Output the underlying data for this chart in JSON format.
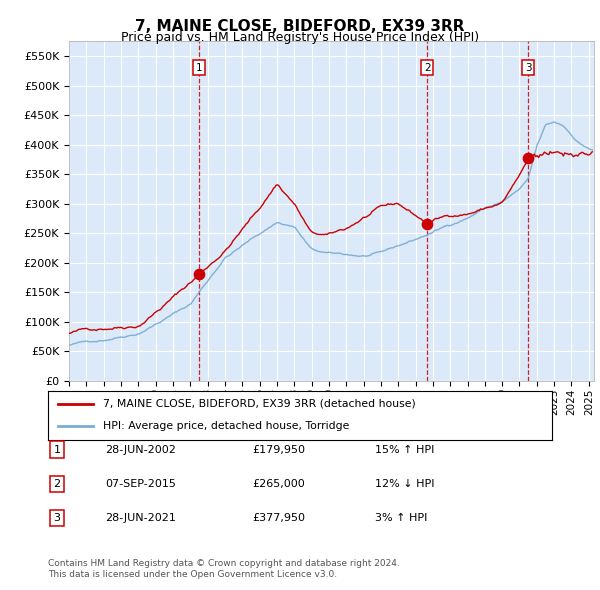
{
  "title": "7, MAINE CLOSE, BIDEFORD, EX39 3RR",
  "subtitle": "Price paid vs. HM Land Registry's House Price Index (HPI)",
  "legend_line1": "7, MAINE CLOSE, BIDEFORD, EX39 3RR (detached house)",
  "legend_line2": "HPI: Average price, detached house, Torridge",
  "footer1": "Contains HM Land Registry data © Crown copyright and database right 2024.",
  "footer2": "This data is licensed under the Open Government Licence v3.0.",
  "transactions": [
    {
      "num": 1,
      "date": "28-JUN-2002",
      "price": "£179,950",
      "hpi": "15% ↑ HPI",
      "year": 2002.49,
      "price_val": 179950
    },
    {
      "num": 2,
      "date": "07-SEP-2015",
      "price": "£265,000",
      "hpi": "12% ↓ HPI",
      "year": 2015.68,
      "price_val": 265000
    },
    {
      "num": 3,
      "date": "28-JUN-2021",
      "price": "£377,950",
      "hpi": "3% ↑ HPI",
      "year": 2021.49,
      "price_val": 377950
    }
  ],
  "ylim": [
    0,
    575000
  ],
  "xlim_start": 1995.0,
  "xlim_end": 2025.3,
  "bg_color": "#dce9f8",
  "grid_color": "#ffffff",
  "red_line_color": "#cc0000",
  "blue_line_color": "#7aadd4",
  "sale_dot_color": "#cc0000",
  "dashed_line_color": "#cc0000",
  "title_fontsize": 11,
  "subtitle_fontsize": 9
}
